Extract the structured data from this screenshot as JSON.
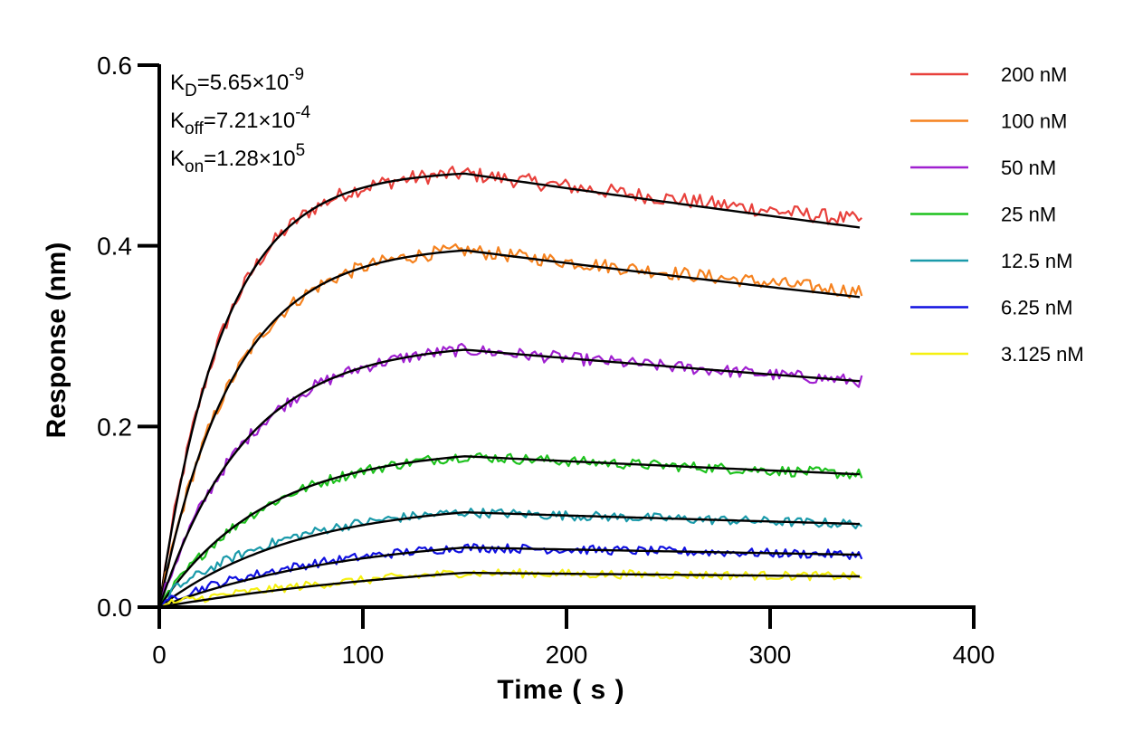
{
  "chart_data": {
    "type": "line",
    "xlabel": "Time ( s )",
    "ylabel": "Response (nm)",
    "xlim": [
      0,
      400
    ],
    "ylim": [
      0,
      0.6
    ],
    "x_ticks": [
      0,
      100,
      200,
      300,
      400
    ],
    "x_tick_labels": [
      "0",
      "100",
      "200",
      "300",
      "400"
    ],
    "y_ticks": [
      0,
      0.2,
      0.4,
      0.6
    ],
    "y_tick_labels": [
      "0.0",
      "0.2",
      "0.4",
      "0.6"
    ],
    "grid": false,
    "legend_position": "right",
    "association_end": 150,
    "end_time": 345,
    "annotations": [
      {
        "symbol": "K",
        "subscript": "D",
        "value": "=5.65×10",
        "exponent": "-9"
      },
      {
        "symbol": "K",
        "subscript": "off",
        "value": "=7.21×10",
        "exponent": "-4"
      },
      {
        "symbol": "K",
        "subscript": "on",
        "value": "=1.28×10",
        "exponent": "5"
      }
    ],
    "fit_color": "#000000",
    "series": [
      {
        "name": "200 nM",
        "color": "#e8413c",
        "plateau": 0.48,
        "end_value": 0.42
      },
      {
        "name": "100 nM",
        "color": "#f5821f",
        "plateau": 0.395,
        "end_value": 0.343
      },
      {
        "name": "50 nM",
        "color": "#a020d0",
        "plateau": 0.285,
        "end_value": 0.25
      },
      {
        "name": "25 nM",
        "color": "#1ec21e",
        "plateau": 0.167,
        "end_value": 0.147
      },
      {
        "name": "12.5 nM",
        "color": "#1a9aaa",
        "plateau": 0.105,
        "end_value": 0.092
      },
      {
        "name": "6.25 nM",
        "color": "#1010e0",
        "plateau": 0.066,
        "end_value": 0.058
      },
      {
        "name": "3.125 nM",
        "color": "#f5f010",
        "plateau": 0.038,
        "end_value": 0.034
      }
    ]
  }
}
